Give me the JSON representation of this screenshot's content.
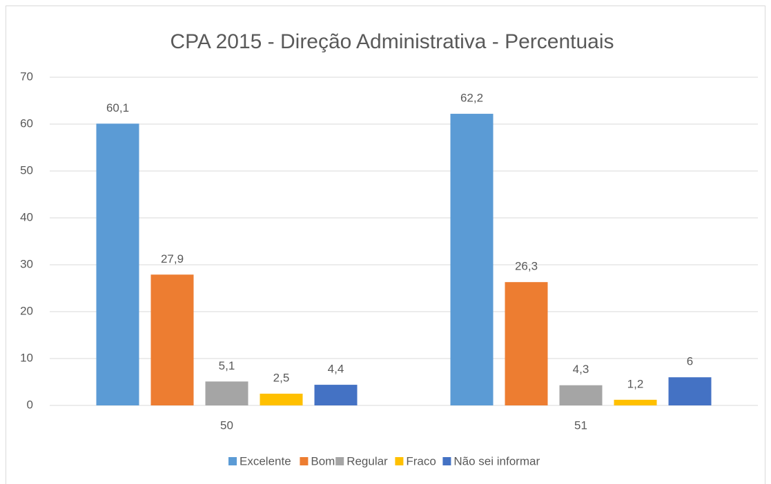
{
  "chart_data": {
    "type": "bar",
    "title": "CPA 2015 - Direção Administrativa - Percentuais",
    "categories": [
      "50",
      "51"
    ],
    "series": [
      {
        "name": "Excelente",
        "color": "#5b9bd5",
        "values": [
          60.1,
          62.2
        ],
        "value_labels": [
          "60,1",
          "62,2"
        ]
      },
      {
        "name": "Bom",
        "color": "#ed7d31",
        "values": [
          27.9,
          26.3
        ],
        "value_labels": [
          "27,9",
          "26,3"
        ]
      },
      {
        "name": "Regular",
        "color": "#a5a5a5",
        "values": [
          5.1,
          4.3
        ],
        "value_labels": [
          "5,1",
          "4,3"
        ]
      },
      {
        "name": "Fraco",
        "color": "#ffc000",
        "values": [
          2.5,
          1.2
        ],
        "value_labels": [
          "2,5",
          "1,2"
        ]
      },
      {
        "name": "Não sei informar",
        "color": "#4472c4",
        "values": [
          4.4,
          6
        ],
        "value_labels": [
          "4,4",
          "6"
        ]
      }
    ],
    "ylim": [
      0,
      70
    ],
    "yticks": [
      0,
      10,
      20,
      30,
      40,
      50,
      60,
      70
    ],
    "grid": true,
    "legend": "bottom"
  }
}
